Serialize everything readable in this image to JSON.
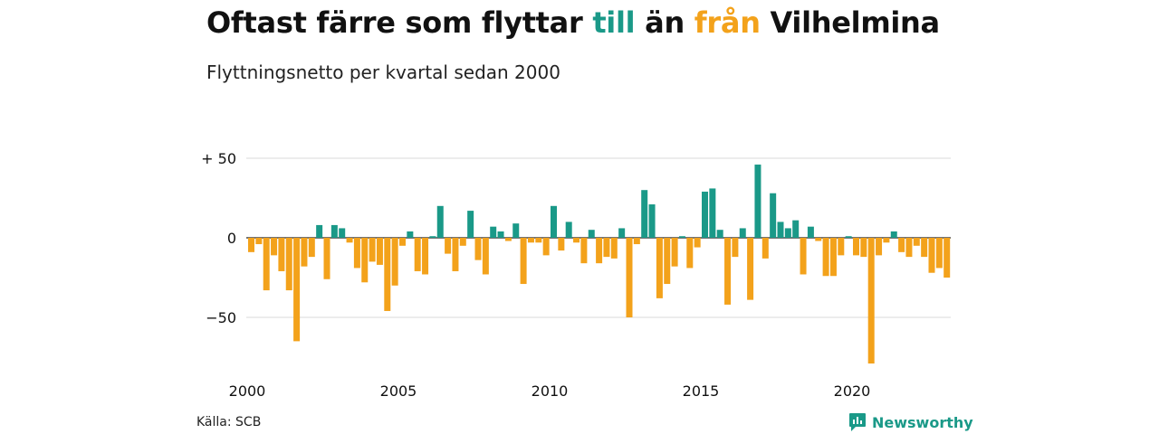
{
  "title": {
    "part1": "Oftast färre som flyttar ",
    "highlight1": "till",
    "part2": " än ",
    "highlight2": "från",
    "part3": " Vilhelmina"
  },
  "subtitle": "Flyttningsnetto per kvartal sedan 2000",
  "source": "Källa: SCB",
  "brand": {
    "name": "Newsworthy",
    "icon": "newsworthy-logo-icon"
  },
  "colors": {
    "positive": "#1a9988",
    "negative": "#f3a21b",
    "brand": "#1a9988"
  },
  "chart_data": {
    "type": "bar",
    "y_tick_labels": [
      "+ 50",
      "0",
      "−50"
    ],
    "y_ticks": [
      50,
      0,
      -50
    ],
    "x_tick_labels": [
      "2000",
      "2005",
      "2010",
      "2015",
      "2020"
    ],
    "x_tick_quarter_index": [
      0,
      20,
      40,
      60,
      80
    ],
    "ylim": [
      -85,
      50
    ],
    "grid": true,
    "first_period": "2000 Q1",
    "last_period": "2023 Q1",
    "values": [
      -9,
      -4,
      -33,
      -11,
      -21,
      -33,
      -65,
      -18,
      -12,
      8,
      -26,
      8,
      6,
      -3,
      -19,
      -28,
      -15,
      -17,
      -46,
      -30,
      -5,
      4,
      -21,
      -23,
      1,
      20,
      -10,
      -21,
      -5,
      17,
      -14,
      -23,
      7,
      4,
      -2,
      9,
      -29,
      -3,
      -3,
      -11,
      20,
      -8,
      10,
      -3,
      -16,
      5,
      -16,
      -12,
      -13,
      6,
      -50,
      -4,
      30,
      21,
      -38,
      -29,
      -18,
      1,
      -19,
      -6,
      29,
      31,
      5,
      -42,
      -12,
      6,
      -39,
      46,
      -13,
      28,
      10,
      6,
      11,
      -23,
      7,
      -2,
      -24,
      -24,
      -11,
      1,
      -11,
      -12,
      -79,
      -11,
      -3,
      4,
      -9,
      -12,
      -5,
      -12,
      -22,
      -19,
      -25
    ]
  }
}
